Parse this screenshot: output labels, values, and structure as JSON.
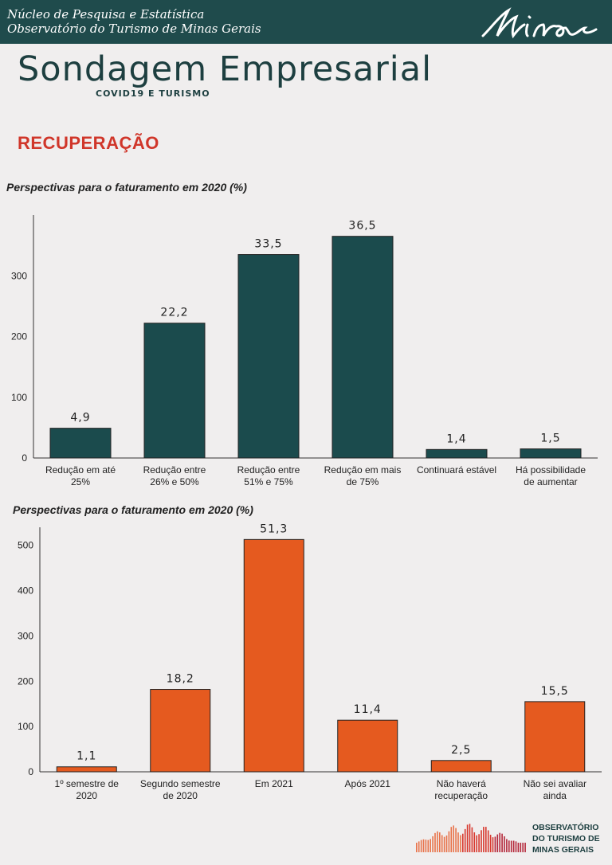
{
  "header": {
    "line1": "Núcleo de Pesquisa e Estatística",
    "line2": "Observatório do Turismo de Minas Gerais",
    "logo_text": "Minas"
  },
  "title": "Sondagem Empresarial",
  "subtitle": "COVID19 E TURISMO",
  "section": "RECUPERAÇÃO",
  "colors": {
    "header_bg": "#1f4b4c",
    "chart1_bar": "#1b4b4d",
    "chart2_bar": "#e55a1f",
    "section": "#d0362a"
  },
  "chart_data": [
    {
      "type": "bar",
      "title": "Perspectivas para o faturamento em 2020 (%)",
      "categories": [
        [
          "Redução em até",
          "25%"
        ],
        [
          "Redução entre",
          "26% e 50%"
        ],
        [
          "Redução entre",
          "51% e 75%"
        ],
        [
          "Redução em mais",
          "de 75%"
        ],
        [
          "Continuará estável"
        ],
        [
          "Há possibilidade",
          "de aumentar"
        ]
      ],
      "values": [
        49,
        222,
        335,
        365,
        14,
        15
      ],
      "data_labels": [
        "4,9",
        "22,2",
        "33,5",
        "36,5",
        "1,4",
        "1,5"
      ],
      "yticks": [
        0,
        100,
        200,
        300
      ],
      "ylim": [
        0,
        400
      ],
      "grid": false
    },
    {
      "type": "bar",
      "title": "Perspectivas para o faturamento em 2020 (%)",
      "categories": [
        [
          "1º semestre de",
          "2020"
        ],
        [
          "Segundo semestre",
          "de 2020"
        ],
        [
          "Em 2021"
        ],
        [
          "Após 2021"
        ],
        [
          "Não haverá",
          "recuperação"
        ],
        [
          "Não sei avaliar",
          "ainda"
        ]
      ],
      "values": [
        11,
        182,
        513,
        114,
        25,
        155
      ],
      "data_labels": [
        "1,1",
        "18,2",
        "51,3",
        "11,4",
        "2,5",
        "15,5"
      ],
      "yticks": [
        0,
        100,
        200,
        300,
        400,
        500
      ],
      "ylim": [
        0,
        540
      ],
      "grid": false
    }
  ],
  "footer": {
    "lines": [
      "OBSERVATÓRIO",
      "DO TURISMO DE",
      "MINAS GERAIS"
    ]
  }
}
